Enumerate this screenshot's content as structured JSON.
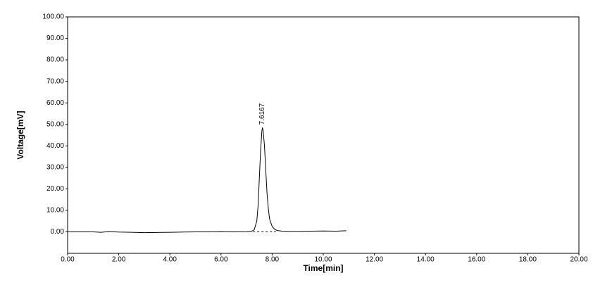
{
  "chart_data": {
    "type": "line",
    "x_label": "Time[min]",
    "y_label": "Voltage[mV]",
    "x": [
      0,
      0.5,
      1.0,
      1.3,
      1.6,
      2.0,
      2.5,
      3.0,
      3.5,
      4.0,
      4.5,
      5.0,
      5.5,
      6.0,
      6.5,
      7.0,
      7.2,
      7.3,
      7.4,
      7.45,
      7.5,
      7.55,
      7.6,
      7.62,
      7.65,
      7.7,
      7.75,
      7.8,
      7.85,
      7.9,
      8.0,
      8.1,
      8.2,
      8.4,
      8.7,
      9.0,
      9.5,
      10.0,
      10.5,
      10.9
    ],
    "values": [
      0,
      0,
      0,
      -0.2,
      0.1,
      -0.1,
      -0.2,
      -0.4,
      -0.3,
      -0.2,
      -0.1,
      0,
      0,
      0.1,
      0,
      0.1,
      0.3,
      1,
      5,
      12,
      25,
      38,
      47,
      48.5,
      47,
      40,
      29,
      18,
      11,
      6,
      2.5,
      1.2,
      0.6,
      0.3,
      0.2,
      0.2,
      0.3,
      0.4,
      0.3,
      0.5
    ],
    "color": "#000000",
    "annotation": "7.6167",
    "baseline": {
      "x": [
        7.25,
        8.15
      ],
      "values": [
        0,
        0
      ]
    },
    "xlim": [
      0,
      20
    ],
    "xticks": [
      {
        "value": 0,
        "label": "0.00"
      },
      {
        "value": 2,
        "label": "2.00"
      },
      {
        "value": 4,
        "label": "4.00"
      },
      {
        "value": 6,
        "label": "6.00"
      },
      {
        "value": 8,
        "label": "8.00"
      },
      {
        "value": 10,
        "label": "10.00"
      },
      {
        "value": 12,
        "label": "12.00"
      },
      {
        "value": 14,
        "label": "14.00"
      },
      {
        "value": 16,
        "label": "16.00"
      },
      {
        "value": 18,
        "label": "18.00"
      },
      {
        "value": 20,
        "label": "20.00"
      }
    ],
    "ylim": [
      -10,
      100
    ],
    "yticks": [
      {
        "value": 0,
        "label": "0.00"
      },
      {
        "value": 10,
        "label": "10.00"
      },
      {
        "value": 20,
        "label": "20.00"
      },
      {
        "value": 30,
        "label": "30.00"
      },
      {
        "value": 40,
        "label": "40.00"
      },
      {
        "value": 50,
        "label": "50.00"
      },
      {
        "value": 60,
        "label": "60.00"
      },
      {
        "value": 70,
        "label": "70.00"
      },
      {
        "value": 80,
        "label": "80.00"
      },
      {
        "value": 90,
        "label": "90.00"
      },
      {
        "value": 100,
        "label": "100.00"
      }
    ]
  }
}
